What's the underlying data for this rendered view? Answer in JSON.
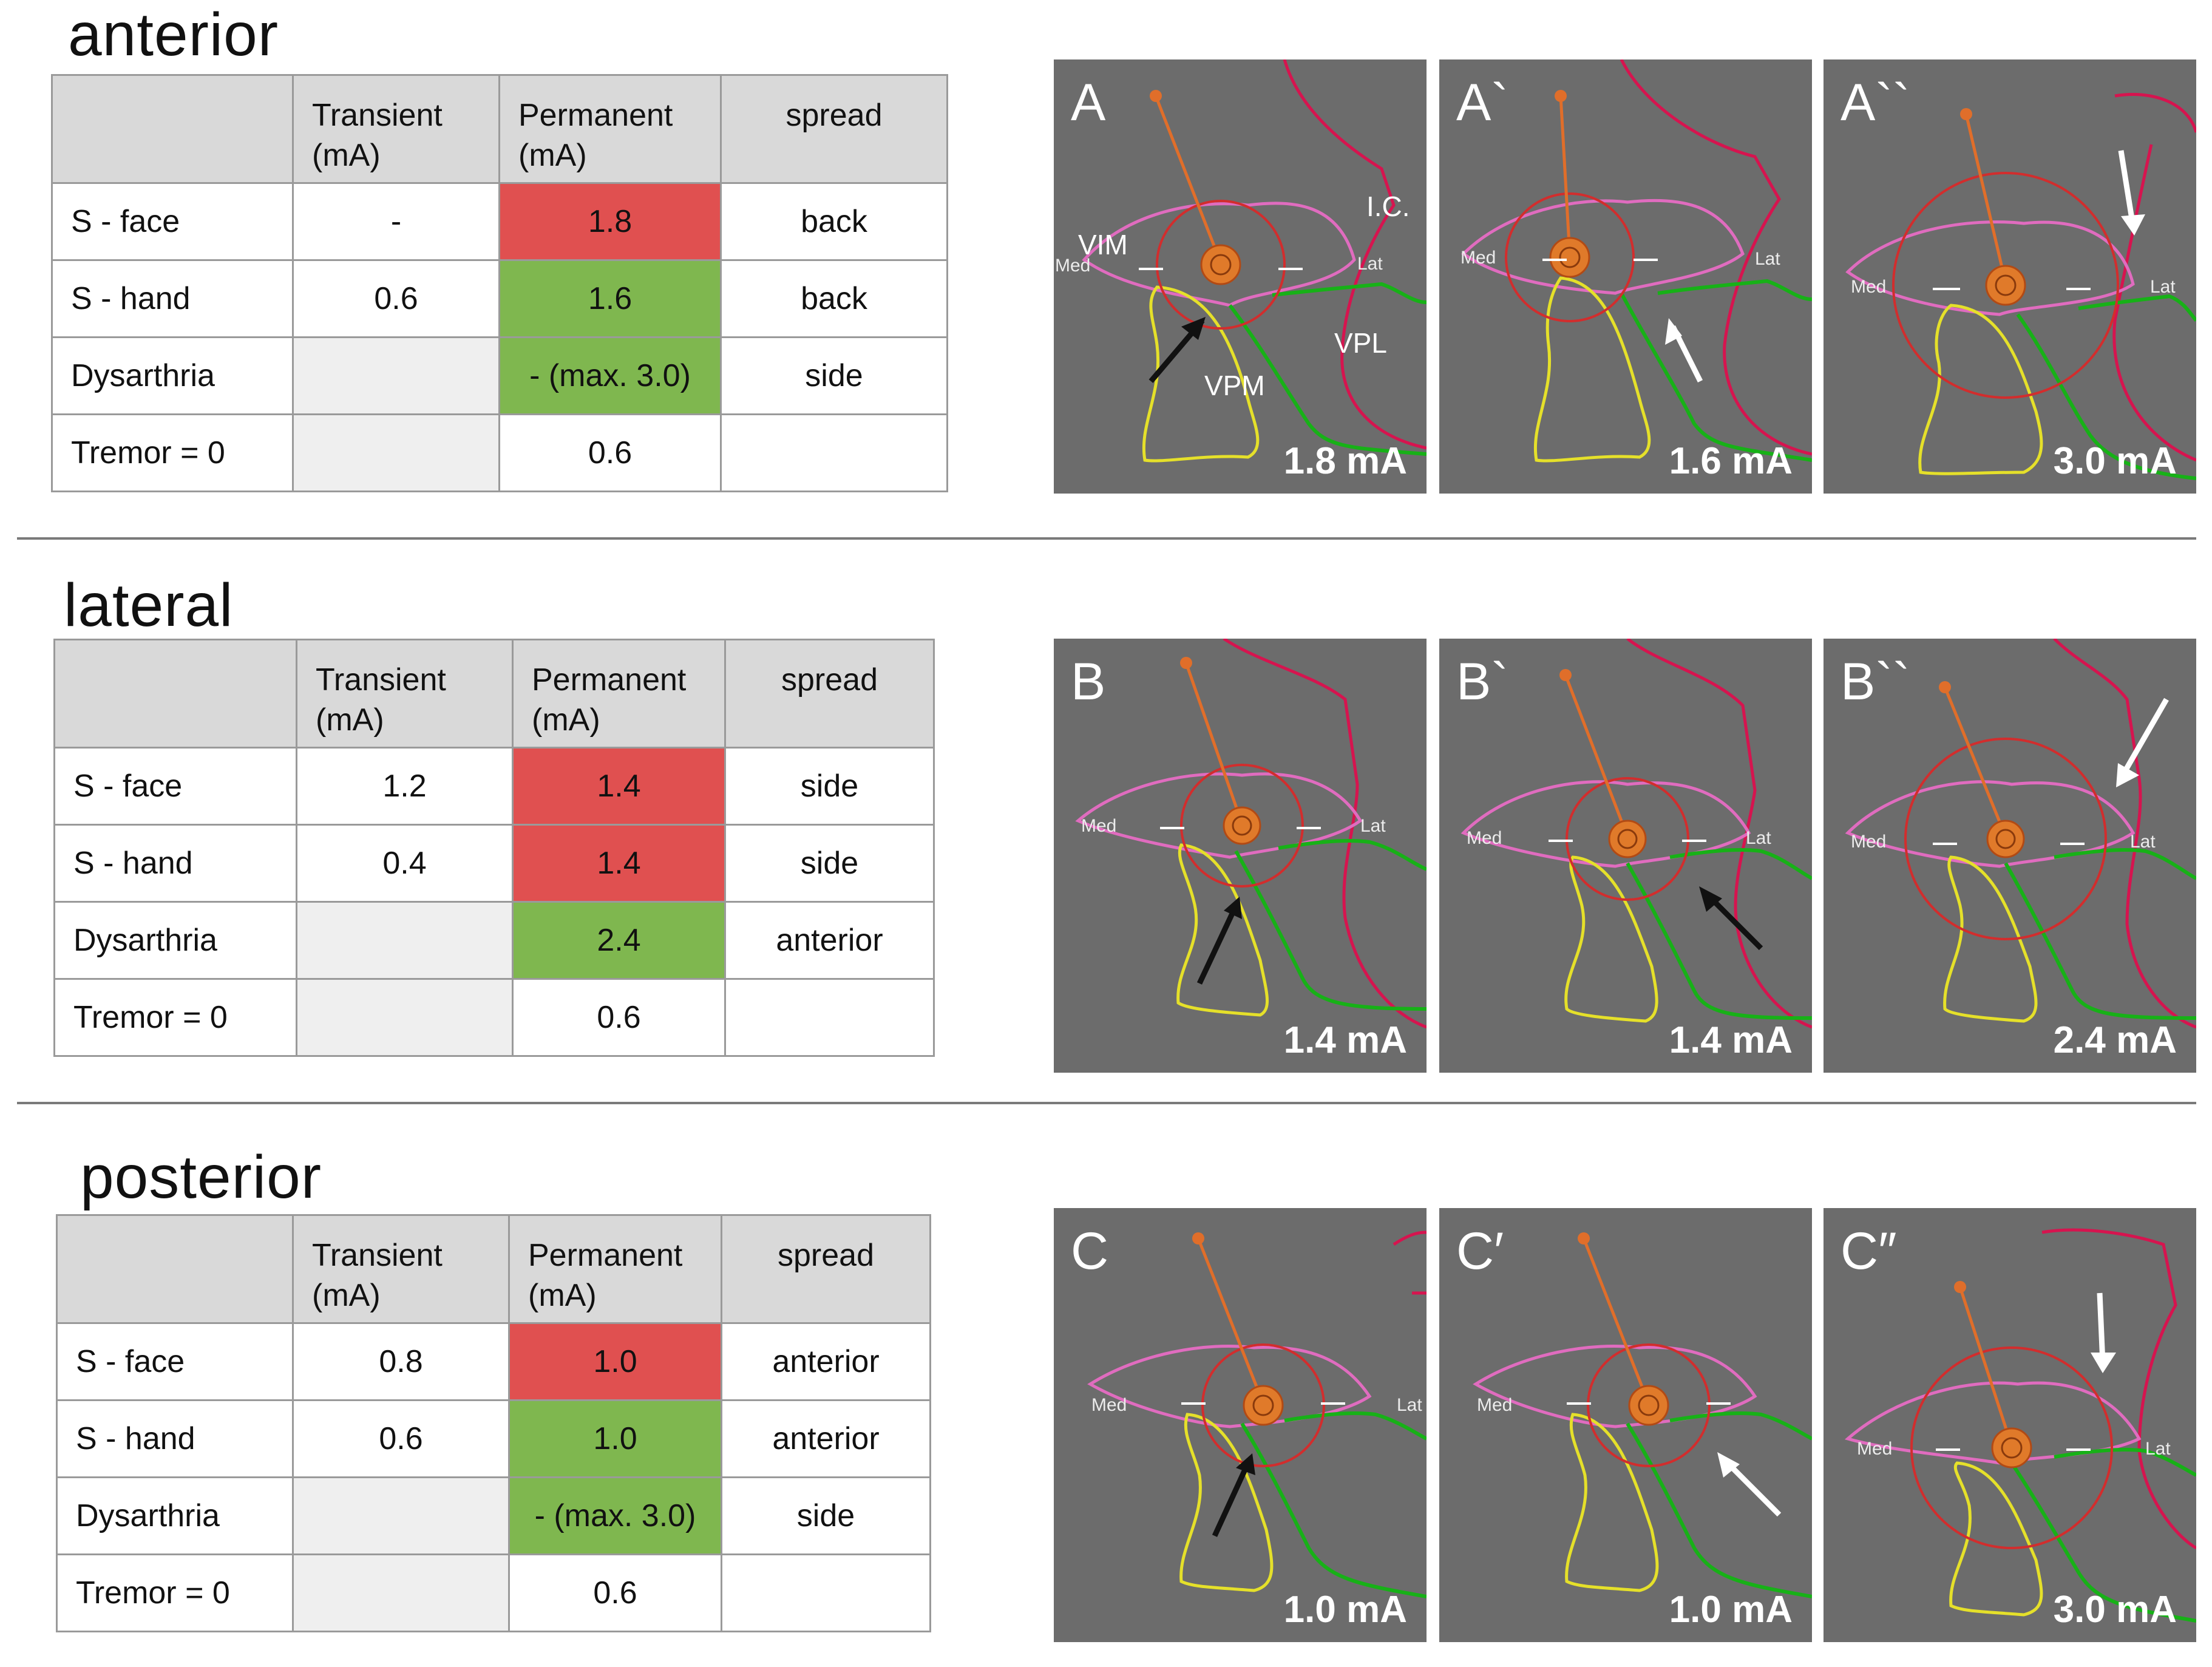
{
  "sections": [
    {
      "title": "anterior",
      "headers": [
        "",
        "Transient\n(mA)",
        "Permanent\n(mA)",
        "spread"
      ],
      "rows": [
        {
          "label": "S - face",
          "transient": "-",
          "permanent": "1.8",
          "spread": "back",
          "status": "red"
        },
        {
          "label": "S -  hand",
          "transient": "0.6",
          "permanent": "1.6",
          "spread": "back",
          "status": "green"
        },
        {
          "label": "Dysarthria",
          "transient": "",
          "permanent": "- (max. 3.0)",
          "spread": "side",
          "status": "green"
        },
        {
          "label": "Tremor = 0",
          "transient": "",
          "permanent": "0.6",
          "spread": "",
          "status": "none"
        }
      ],
      "panels": [
        {
          "label": "A",
          "current": "1.8 mA",
          "arrow": "black-up-right"
        },
        {
          "label": "A`",
          "current": "1.6 mA",
          "arrow": "white-up-left"
        },
        {
          "label": "A``",
          "current": "3.0 mA",
          "arrow": "white-down"
        }
      ]
    },
    {
      "title": "lateral",
      "headers": [
        "",
        "Transient\n(mA)",
        "Permanent\n(mA)",
        "spread"
      ],
      "rows": [
        {
          "label": "S - face",
          "transient": "1.2",
          "permanent": "1.4",
          "spread": "side",
          "status": "red"
        },
        {
          "label": "S - hand",
          "transient": "0.4",
          "permanent": "1.4",
          "spread": "side",
          "status": "red"
        },
        {
          "label": "Dysarthria",
          "transient": "",
          "permanent": "2.4",
          "spread": "anterior",
          "status": "green"
        },
        {
          "label": "Tremor  = 0",
          "transient": "",
          "permanent": "0.6",
          "spread": "",
          "status": "none"
        }
      ],
      "panels": [
        {
          "label": "B",
          "current": "1.4 mA",
          "arrow": "black-up-right"
        },
        {
          "label": "B`",
          "current": "1.4 mA",
          "arrow": "black-up-left"
        },
        {
          "label": "B``",
          "current": "2.4 mA",
          "arrow": "white-down-left"
        }
      ]
    },
    {
      "title": "posterior",
      "headers": [
        "",
        "Transient\n(mA)",
        "Permanent\n(mA)",
        "spread"
      ],
      "rows": [
        {
          "label": "S - face",
          "transient": "0.8",
          "permanent": "1.0",
          "spread": "anterior",
          "status": "red"
        },
        {
          "label": "S -  hand",
          "transient": "0.6",
          "permanent": "1.0",
          "spread": "anterior",
          "status": "green"
        },
        {
          "label": "Dysarthria",
          "transient": "",
          "permanent": "- (max. 3.0)",
          "spread": "side",
          "status": "green"
        },
        {
          "label": "Tremor = 0",
          "transient": "",
          "permanent": "0.6",
          "spread": "",
          "status": "none"
        }
      ],
      "panels": [
        {
          "label": "C",
          "current": "1.0 mA",
          "arrow": "black-up-right"
        },
        {
          "label": "C′",
          "current": "1.0 mA",
          "arrow": "white-up-left"
        },
        {
          "label": "C″",
          "current": "3.0 mA",
          "arrow": "white-down"
        }
      ]
    }
  ],
  "structure_labels": {
    "vim": "VIM",
    "vpm": "VPM",
    "vpl": "VPL",
    "ic": "I.C.",
    "med": "Med",
    "lat": "Lat"
  },
  "colors": {
    "red_cell": "#e05050",
    "green_cell": "#7fb74f",
    "header": "#d9d9d9",
    "panel_bg": "#6c6c6c"
  }
}
